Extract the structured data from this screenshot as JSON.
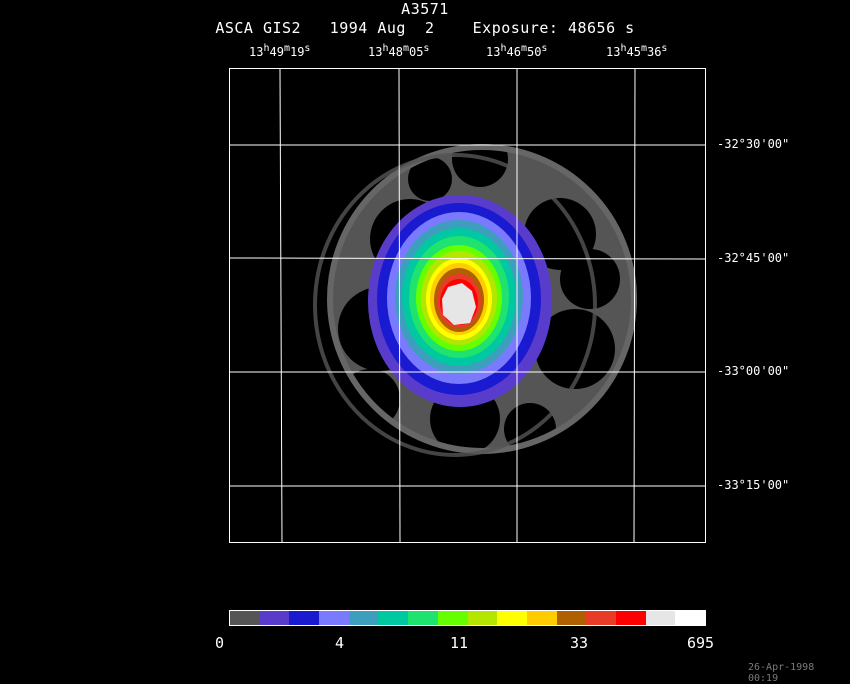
{
  "header": {
    "object": "A3571",
    "line2": "ASCA GIS2   1994 Aug  2    Exposure: 48656 s"
  },
  "ra_labels": [
    {
      "h": "13",
      "m": "49",
      "s": "19"
    },
    {
      "h": "13",
      "m": "48",
      "s": "05"
    },
    {
      "h": "13",
      "m": "46",
      "s": "50"
    },
    {
      "h": "13",
      "m": "45",
      "s": "36"
    }
  ],
  "dec_labels": [
    "-32°30'00\"",
    "-32°45'00\"",
    "-33°00'00\"",
    "-33°15'00\""
  ],
  "colorbar": {
    "colors": [
      "#555555",
      "#5a3ccc",
      "#1a1ad0",
      "#7a7aff",
      "#3d9ebe",
      "#00c8a0",
      "#1ee36e",
      "#66ff00",
      "#b4e600",
      "#ffff00",
      "#ffcc00",
      "#b06000",
      "#e83c28",
      "#ff0000",
      "#e6e6e6",
      "#ffffff"
    ],
    "ticks": [
      "0",
      "4",
      "11",
      "33",
      "695"
    ]
  },
  "timestamp": "26-Apr-1998 00:19"
}
